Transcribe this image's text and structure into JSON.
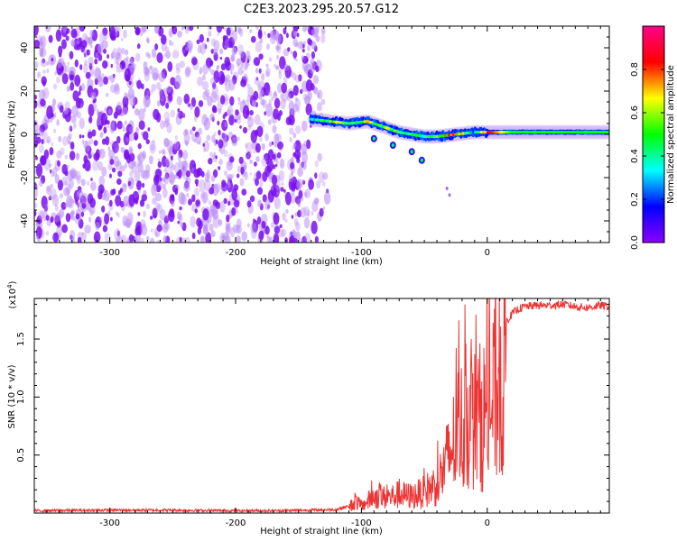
{
  "title": "C2E3.2023.295.20.57.G12",
  "chart_data": [
    {
      "type": "heatmap",
      "xlabel": "Height of straight line (km)",
      "ylabel": "Frequency (Hz)",
      "xlim": [
        -360,
        97
      ],
      "ylim": [
        -50,
        50
      ],
      "xticks": [
        -300,
        -200,
        -100,
        0
      ],
      "yticks": [
        -40,
        -20,
        0,
        20,
        40
      ],
      "colorbar": {
        "label": "Normalized spectral amplitude",
        "range": [
          0.0,
          1.0
        ],
        "ticks": [
          "0.0",
          "0.2",
          "0.4",
          "0.6",
          "0.8"
        ],
        "stops": [
          "#8a00ff",
          "#0000ff",
          "#00ffff",
          "#00ff00",
          "#ffff00",
          "#ff0000",
          "#ff0088"
        ]
      },
      "noise_region": {
        "x_range": [
          -360,
          -135
        ],
        "y_range": [
          -50,
          50
        ],
        "amplitude": [
          0.0,
          0.3
        ]
      },
      "ridge": [
        {
          "x": -140,
          "y": 7,
          "amp": 0.4
        },
        {
          "x": -125,
          "y": 6,
          "amp": 0.6
        },
        {
          "x": -110,
          "y": 5,
          "amp": 0.5
        },
        {
          "x": -95,
          "y": 6,
          "amp": 0.6
        },
        {
          "x": -80,
          "y": 3,
          "amp": 0.6
        },
        {
          "x": -70,
          "y": 1,
          "amp": 0.55
        },
        {
          "x": -60,
          "y": 0,
          "amp": 0.5
        },
        {
          "x": -50,
          "y": -1,
          "amp": 0.45
        },
        {
          "x": -40,
          "y": -1,
          "amp": 0.5
        },
        {
          "x": -25,
          "y": 0,
          "amp": 0.85
        },
        {
          "x": -10,
          "y": 1,
          "amp": 0.3
        },
        {
          "x": 0,
          "y": 1,
          "amp": 0.9
        },
        {
          "x": 20,
          "y": 1,
          "amp": 0.5
        },
        {
          "x": 50,
          "y": 1,
          "amp": 0.5
        },
        {
          "x": 80,
          "y": 1,
          "amp": 0.5
        }
      ],
      "branch": [
        {
          "x": -90,
          "y": -2
        },
        {
          "x": -75,
          "y": -5
        },
        {
          "x": -60,
          "y": -8
        },
        {
          "x": -52,
          "y": -12
        }
      ],
      "isolated_points": [
        {
          "x": -32,
          "y": -25
        },
        {
          "x": -30,
          "y": -28
        }
      ]
    },
    {
      "type": "line",
      "xlabel": "Height of straight line (km)",
      "ylabel": "SNR (10 * v/v)",
      "y_scale_label": "(x10",
      "y_scale_exponent": "4",
      "y_scale_suffix": ")",
      "xlim": [
        -360,
        97
      ],
      "ylim": [
        0,
        18500
      ],
      "xticks": [
        -300,
        -200,
        -100,
        0
      ],
      "yticks": [
        {
          "value": 5000,
          "label": "0.5"
        },
        {
          "value": 10000,
          "label": "1.0"
        },
        {
          "value": 15000,
          "label": "1.5"
        }
      ],
      "color": "#ee3333",
      "series": [
        {
          "x": [
            -360,
            -300,
            -250,
            -200,
            -170,
            -140,
            -120,
            -110,
            -105,
            -100,
            -90,
            -80,
            -70,
            -60,
            -50,
            -45,
            -40,
            -35,
            -30,
            -25,
            -22,
            -20,
            -18,
            -15,
            -10,
            -5,
            0,
            5,
            10,
            15,
            20,
            25,
            30,
            40,
            50,
            60,
            70,
            80,
            90,
            97
          ],
          "y": [
            200,
            250,
            250,
            200,
            200,
            250,
            300,
            600,
            1500,
            800,
            2000,
            1800,
            2200,
            2000,
            2500,
            3000,
            3500,
            5000,
            7000,
            9000,
            11000,
            10000,
            10500,
            11500,
            11000,
            11500,
            12000,
            13500,
            15000,
            16500,
            17200,
            17600,
            17800,
            17900,
            17900,
            18000,
            17800,
            17700,
            17900,
            17800
          ]
        }
      ]
    }
  ]
}
